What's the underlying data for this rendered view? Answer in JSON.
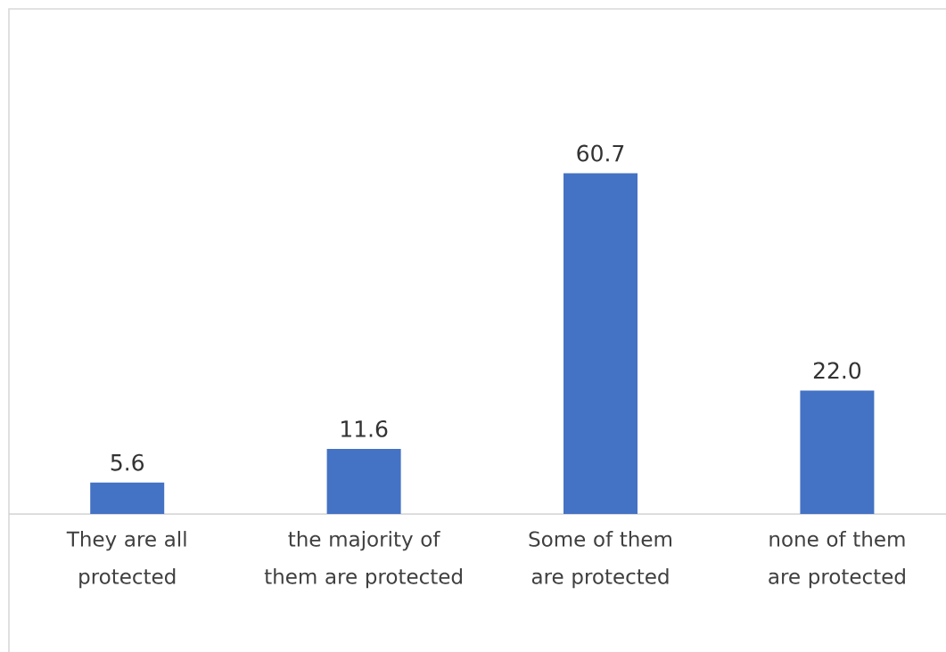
{
  "chart_data": {
    "type": "bar",
    "categories": [
      "They are all protected",
      "the majority of them are protected",
      "Some of them are protected",
      "none of them are protected"
    ],
    "values": [
      5.6,
      11.6,
      60.7,
      22.0
    ],
    "value_labels": [
      "5.6",
      "11.6",
      "60.7",
      "22.0"
    ],
    "color": "#4472c4",
    "ylim": [
      0,
      90
    ]
  }
}
